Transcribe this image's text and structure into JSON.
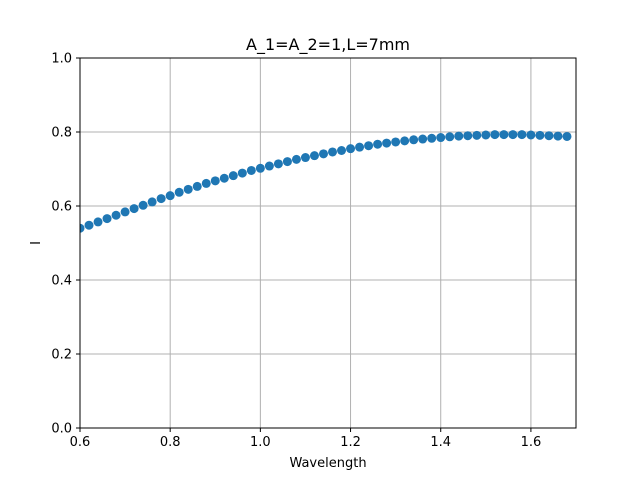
{
  "chart_data": {
    "type": "scatter",
    "title": "A_1=A_2=1,L=7mm",
    "xlabel": "Wavelength",
    "ylabel": "I",
    "xlim": [
      0.6,
      1.7
    ],
    "ylim": [
      0.0,
      1.0
    ],
    "xticks": [
      "0.6",
      "0.8",
      "1.0",
      "1.2",
      "1.4",
      "1.6"
    ],
    "yticks": [
      "0.0",
      "0.2",
      "0.4",
      "0.6",
      "0.8",
      "1.0"
    ],
    "grid": true,
    "marker_color": "#1f77b4",
    "series": [
      {
        "x": [
          0.6,
          0.62,
          0.64,
          0.66,
          0.68,
          0.7,
          0.72,
          0.74,
          0.76,
          0.78,
          0.8,
          0.82,
          0.84,
          0.86,
          0.88,
          0.9,
          0.92,
          0.94,
          0.96,
          0.98,
          1.0,
          1.02,
          1.04,
          1.06,
          1.08,
          1.1,
          1.12,
          1.14,
          1.16,
          1.18,
          1.2,
          1.22,
          1.24,
          1.26,
          1.28,
          1.3,
          1.32,
          1.34,
          1.36,
          1.38,
          1.4,
          1.42,
          1.44,
          1.46,
          1.48,
          1.5,
          1.52,
          1.54,
          1.56,
          1.58,
          1.6,
          1.62,
          1.64,
          1.66,
          1.68
        ],
        "y": [
          0.54,
          0.548,
          0.557,
          0.566,
          0.575,
          0.584,
          0.593,
          0.602,
          0.611,
          0.62,
          0.628,
          0.637,
          0.645,
          0.653,
          0.661,
          0.668,
          0.675,
          0.682,
          0.689,
          0.696,
          0.702,
          0.708,
          0.714,
          0.72,
          0.726,
          0.731,
          0.736,
          0.741,
          0.746,
          0.75,
          0.755,
          0.759,
          0.763,
          0.767,
          0.77,
          0.773,
          0.776,
          0.779,
          0.781,
          0.783,
          0.785,
          0.787,
          0.789,
          0.79,
          0.791,
          0.792,
          0.793,
          0.793,
          0.793,
          0.793,
          0.792,
          0.791,
          0.79,
          0.789,
          0.788
        ]
      }
    ]
  }
}
